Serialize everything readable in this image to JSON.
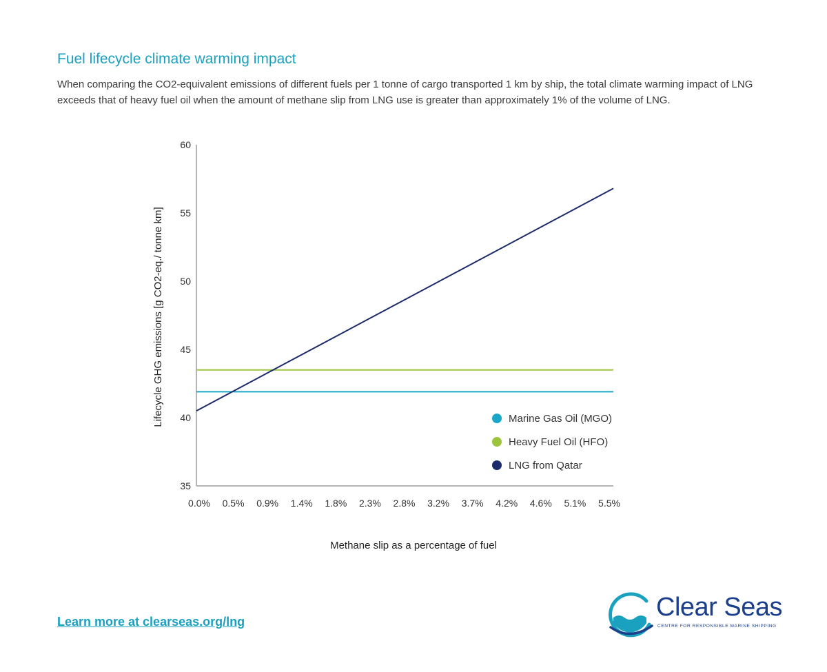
{
  "header": {
    "title": "Fuel lifecycle climate warming impact",
    "subtitle": "When comparing the CO2-equivalent emissions of different fuels per 1 tonne of cargo transported 1 km by ship, the total climate warming impact of LNG exceeds that of heavy fuel oil when the amount of methane slip from LNG use is greater than approximately 1% of the volume of LNG."
  },
  "chart_data": {
    "type": "line",
    "xlabel": "Methane slip as a percentage of fuel",
    "ylabel": "Lifecycle GHG emissions [g CO2-eq./ tonne km]",
    "xlim": [
      0,
      5.55
    ],
    "ylim": [
      35,
      60
    ],
    "x_ticks": [
      "0.0%",
      "0.5%",
      "0.9%",
      "1.4%",
      "1.8%",
      "2.3%",
      "2.8%",
      "3.2%",
      "3.7%",
      "4.2%",
      "4.6%",
      "5.1%",
      "5.5%"
    ],
    "y_ticks": [
      35,
      40,
      45,
      50,
      55,
      60
    ],
    "grid": false,
    "legend_position": "bottom-right",
    "series": [
      {
        "name": "Marine Gas Oil (MGO)",
        "color": "#1aa6c8",
        "x": [
          0,
          5.55
        ],
        "y": [
          41.9,
          41.9
        ]
      },
      {
        "name": "Heavy Fuel Oil (HFO)",
        "color": "#9bc53d",
        "x": [
          0,
          5.55
        ],
        "y": [
          43.5,
          43.5
        ]
      },
      {
        "name": "LNG from Qatar",
        "color": "#1b2a6b",
        "x": [
          0,
          5.55
        ],
        "y": [
          40.5,
          56.8
        ]
      }
    ]
  },
  "footer": {
    "link_text": "Learn more at clearseas.org/lng"
  },
  "logo": {
    "name": "Clear Seas",
    "tagline": "CENTRE FOR RESPONSIBLE MARINE SHIPPING"
  }
}
